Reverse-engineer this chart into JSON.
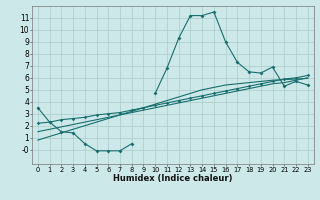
{
  "xlabel": "Humidex (Indice chaleur)",
  "bg_color": "#cce8e8",
  "grid_color": "#aacccc",
  "line_color": "#1a6e6e",
  "xlim": [
    -0.5,
    23.5
  ],
  "ylim": [
    -1.2,
    12.0
  ],
  "xticks": [
    0,
    1,
    2,
    3,
    4,
    5,
    6,
    7,
    8,
    9,
    10,
    11,
    12,
    13,
    14,
    15,
    16,
    17,
    18,
    19,
    20,
    21,
    22,
    23
  ],
  "ytick_vals": [
    0,
    1,
    2,
    3,
    4,
    5,
    6,
    7,
    8,
    9,
    10,
    11
  ],
  "ytick_labels": [
    "-0",
    "1",
    "2",
    "3",
    "4",
    "5",
    "6",
    "7",
    "8",
    "9",
    "10",
    "11"
  ],
  "line1_x": [
    0,
    1,
    2,
    3,
    4,
    5,
    6,
    7,
    8,
    9,
    10,
    11,
    12,
    13,
    14,
    15,
    16,
    17,
    18,
    19,
    20,
    21,
    22,
    23
  ],
  "line1_y": [
    3.5,
    2.3,
    1.5,
    1.4,
    0.5,
    -0.1,
    -0.1,
    -0.1,
    0.5,
    null,
    4.7,
    6.8,
    9.3,
    11.2,
    11.2,
    11.5,
    9.0,
    7.3,
    6.5,
    6.4,
    6.9,
    5.3,
    5.7,
    5.4
  ],
  "line2_x": [
    0,
    1,
    2,
    3,
    4,
    5,
    6,
    7,
    8,
    9,
    10,
    11,
    12,
    13,
    14,
    15,
    16,
    17,
    18,
    19,
    20,
    21,
    22,
    23
  ],
  "line2_y": [
    2.2,
    2.3,
    2.5,
    2.6,
    2.7,
    2.9,
    3.0,
    3.1,
    3.3,
    3.5,
    3.7,
    3.9,
    4.1,
    4.3,
    4.5,
    4.7,
    4.9,
    5.1,
    5.3,
    5.5,
    5.7,
    5.9,
    6.0,
    6.2
  ],
  "line3_x": [
    0,
    1,
    2,
    3,
    4,
    5,
    6,
    7,
    8,
    9,
    10,
    11,
    12,
    13,
    14,
    15,
    16,
    17,
    18,
    19,
    20,
    21,
    22,
    23
  ],
  "line3_y": [
    1.5,
    1.7,
    1.9,
    2.1,
    2.3,
    2.5,
    2.7,
    2.9,
    3.1,
    3.3,
    3.5,
    3.7,
    3.9,
    4.1,
    4.3,
    4.5,
    4.7,
    4.9,
    5.1,
    5.3,
    5.5,
    5.6,
    5.8,
    6.0
  ],
  "line4_x": [
    0,
    1,
    2,
    3,
    4,
    5,
    6,
    7,
    8,
    9,
    10,
    11,
    12,
    13,
    14,
    15,
    16,
    17,
    18,
    19,
    20,
    21,
    22,
    23
  ],
  "line4_y": [
    0.8,
    1.1,
    1.4,
    1.7,
    2.0,
    2.3,
    2.6,
    2.9,
    3.2,
    3.5,
    3.8,
    4.1,
    4.4,
    4.7,
    5.0,
    5.2,
    5.4,
    5.5,
    5.6,
    5.7,
    5.8,
    5.85,
    5.9,
    5.95
  ]
}
